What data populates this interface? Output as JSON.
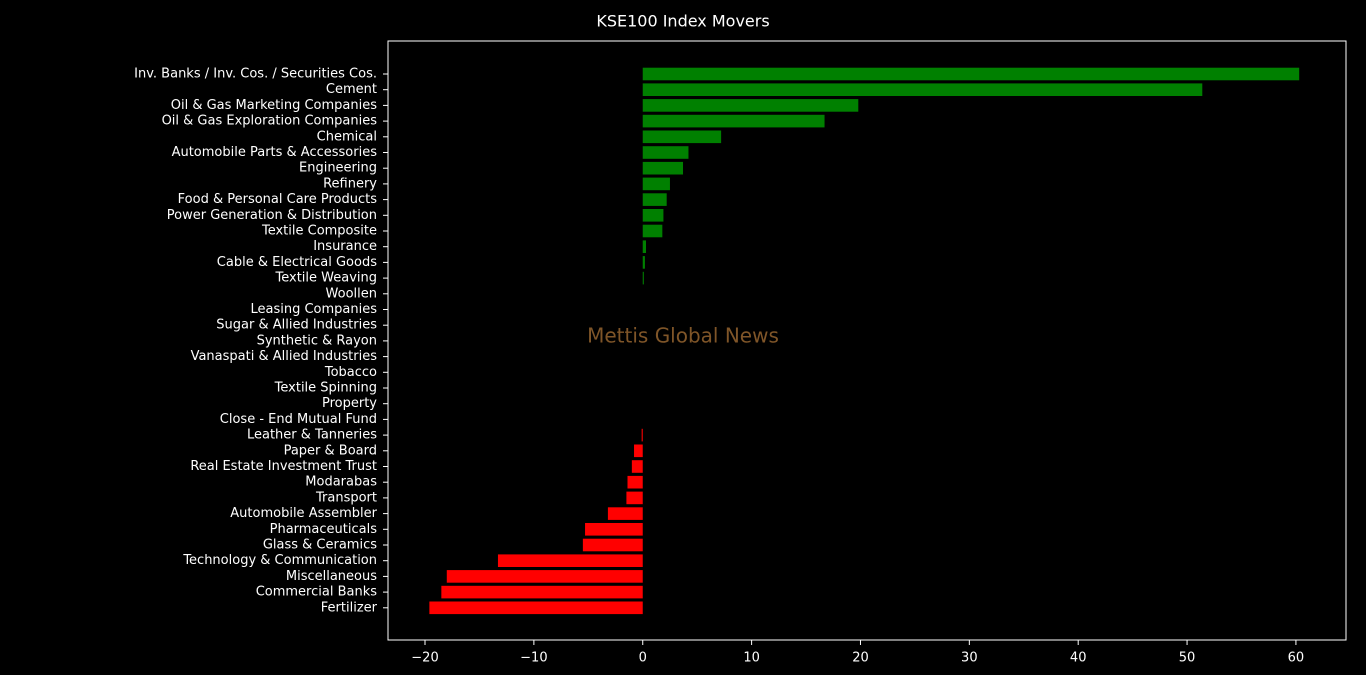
{
  "chart_data": {
    "type": "barh",
    "title": "KSE100 Index Movers",
    "annotation": "Mettis Global News",
    "categories": [
      "Inv. Banks / Inv. Cos. / Securities Cos.",
      "Cement",
      "Oil & Gas Marketing Companies",
      "Oil & Gas Exploration Companies",
      "Chemical",
      "Automobile Parts & Accessories",
      "Engineering",
      "Refinery",
      "Food & Personal Care Products",
      "Power Generation & Distribution",
      "Textile Composite",
      "Insurance",
      "Cable & Electrical Goods",
      "Textile Weaving",
      "Woollen",
      "Leasing Companies",
      "Sugar & Allied Industries",
      "Synthetic & Rayon",
      "Vanaspati & Allied Industries",
      "Tobacco",
      "Textile Spinning",
      "Property",
      "Close - End Mutual Fund",
      "Leather & Tanneries",
      "Paper & Board",
      "Real Estate Investment Trust",
      "Modarabas",
      "Transport",
      "Automobile Assembler",
      "Pharmaceuticals",
      "Glass & Ceramics",
      "Technology & Communication",
      "Miscellaneous",
      "Commercial Banks",
      "Fertilizer"
    ],
    "values": [
      60.3,
      51.4,
      19.8,
      16.7,
      7.2,
      4.2,
      3.7,
      2.5,
      2.2,
      1.9,
      1.8,
      0.3,
      0.2,
      0.1,
      0,
      0,
      0,
      0,
      0,
      0,
      0,
      0,
      0,
      -0.1,
      -0.8,
      -1.0,
      -1.4,
      -1.5,
      -3.2,
      -5.3,
      -5.5,
      -13.3,
      -18.0,
      -18.5,
      -19.6
    ],
    "positive_color": "#008000",
    "negative_color": "#ff0000",
    "annotation_color": "#7f5528",
    "xlim": [
      -23.4,
      64.6
    ],
    "xticks": [
      {
        "value": -20,
        "label": "−20"
      },
      {
        "value": -10,
        "label": "−10"
      },
      0,
      10,
      20,
      30,
      40,
      50,
      60
    ]
  }
}
